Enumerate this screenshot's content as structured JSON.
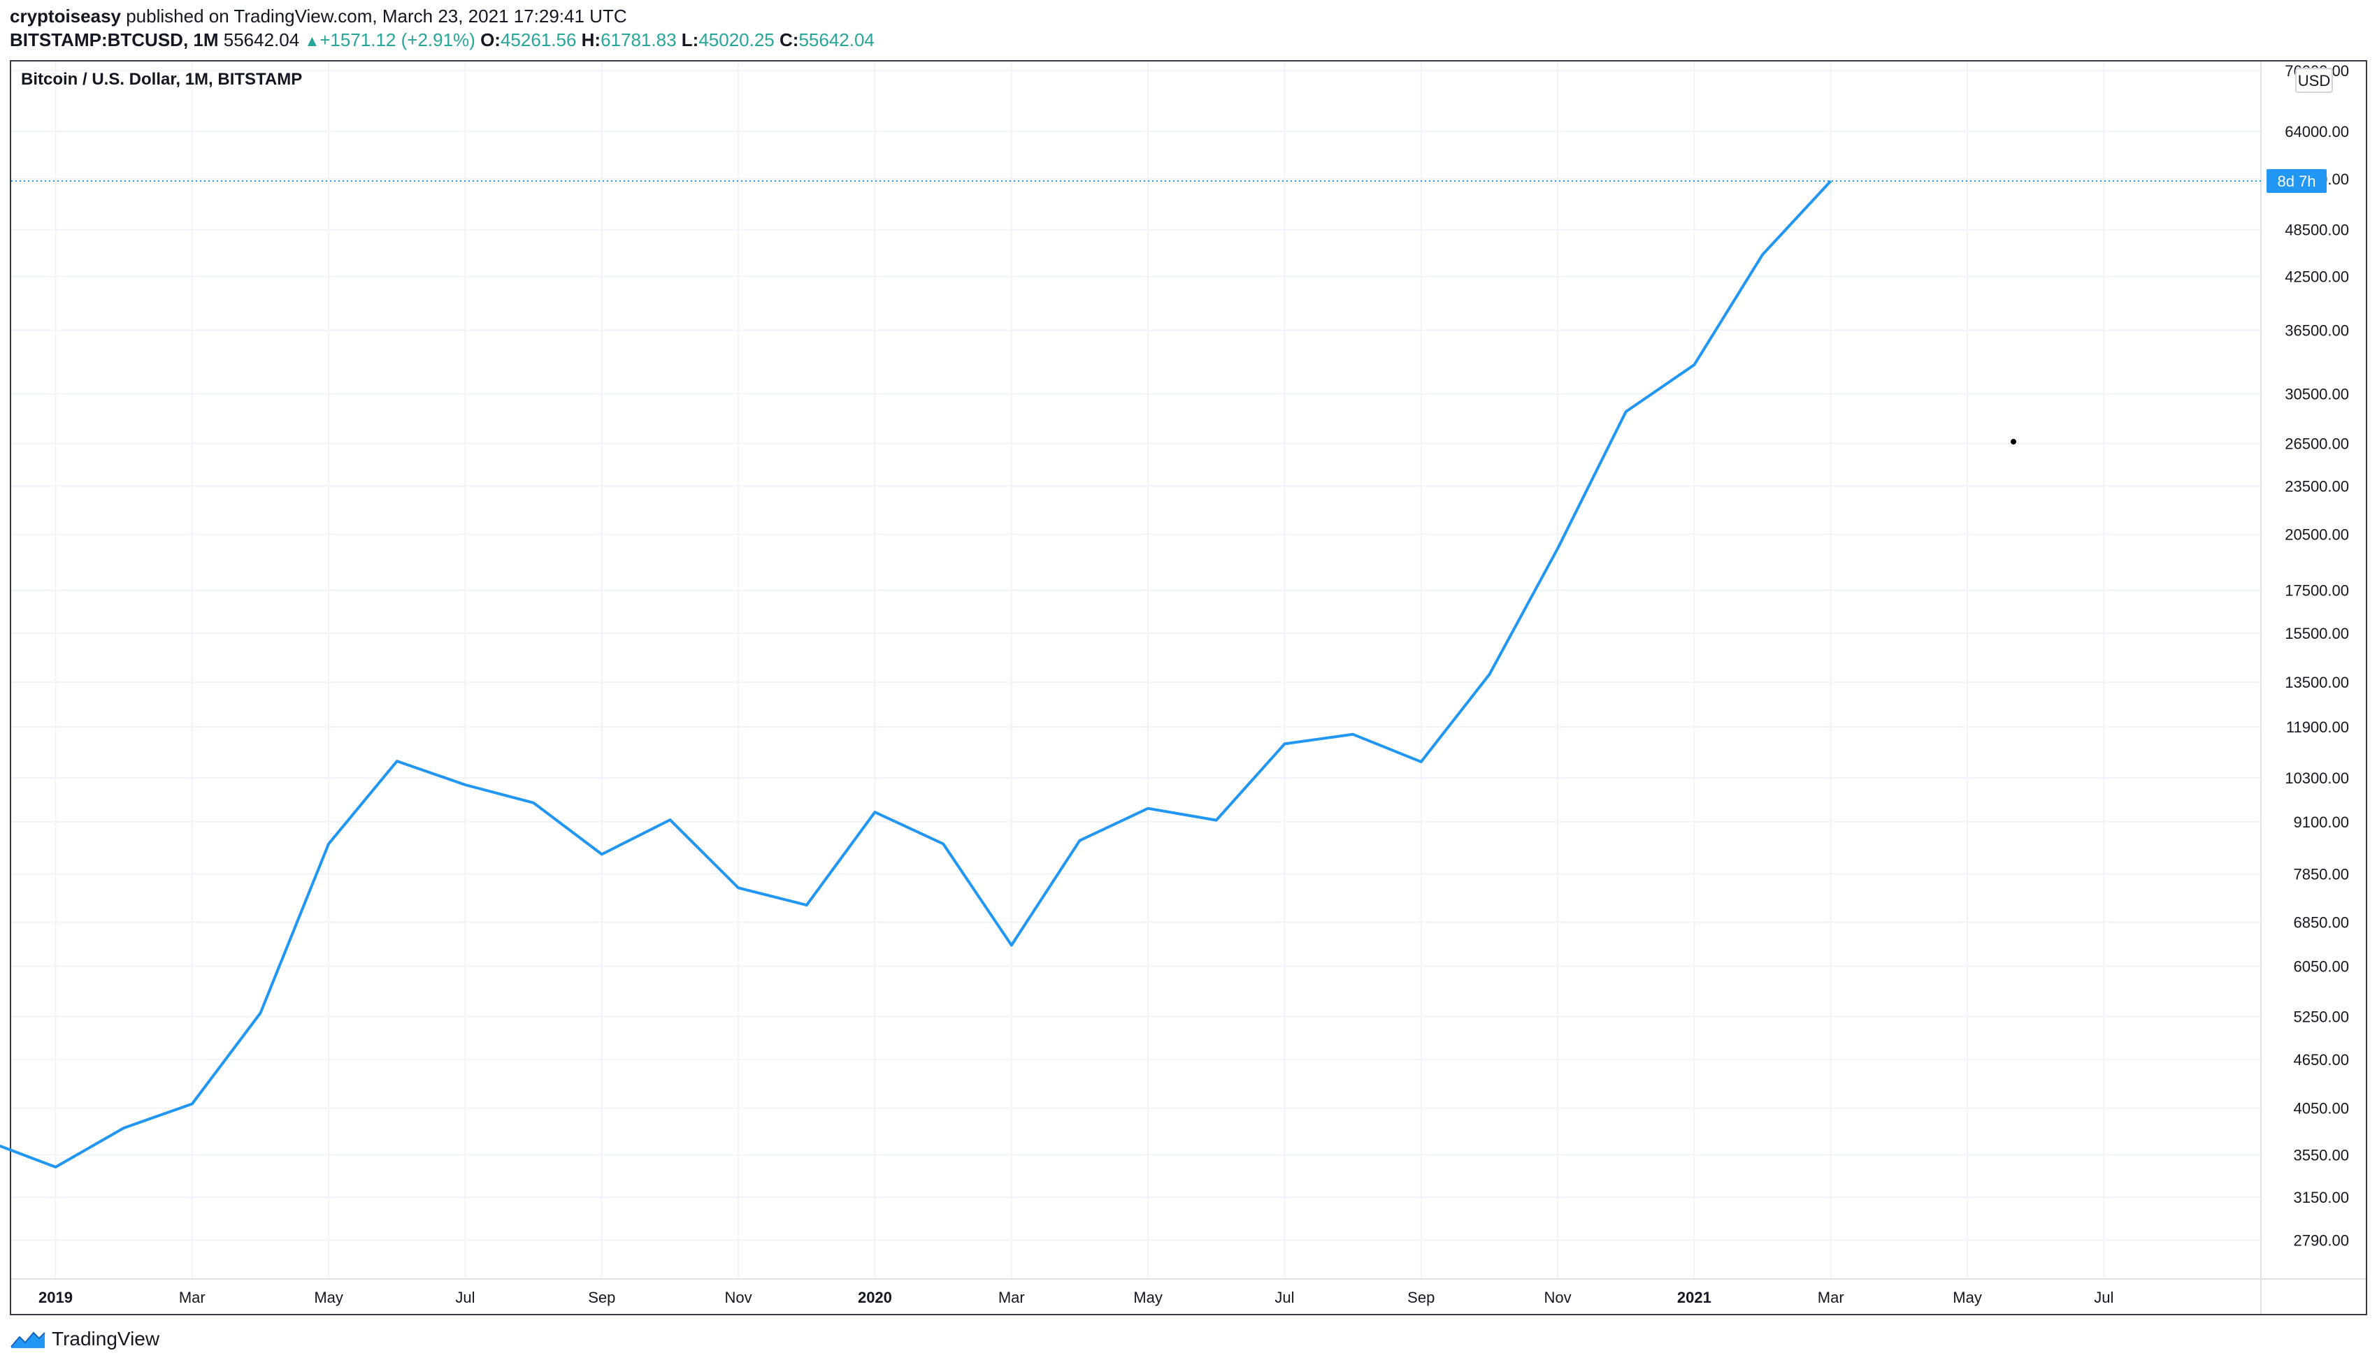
{
  "header": {
    "author": "cryptoiseasy",
    "publish_text": "published on TradingView.com, March 23, 2021 17:29:41 UTC",
    "symbol": "BITSTAMP:BTCUSD, 1M",
    "price": "55642.04",
    "change_arrow": "▲",
    "change": "+1571.12 (+2.91%)",
    "o_label": "O:",
    "o_value": "45261.56",
    "h_label": "H:",
    "h_value": "61781.83",
    "l_label": "L:",
    "l_value": "45020.25",
    "c_label": "C:",
    "c_value": "55642.04"
  },
  "footer": {
    "brand": "TradingView"
  },
  "colors": {
    "line": "#2196f3",
    "grid": "#f0f3fa",
    "badge": "#2196f3",
    "up": "#26a69a"
  },
  "chart_data": {
    "type": "line",
    "title": "Bitcoin / U.S. Dollar, 1M, BITSTAMP",
    "currency": "USD",
    "y_scale": "log",
    "ylim": [
      2500,
      78000
    ],
    "y_ticks": [
      "76000.00",
      "64000.00",
      "56000.00",
      "48500.00",
      "42500.00",
      "36500.00",
      "30500.00",
      "26500.00",
      "23500.00",
      "20500.00",
      "17500.00",
      "15500.00",
      "13500.00",
      "11900.00",
      "10300.00",
      "9100.00",
      "7850.00",
      "6850.00",
      "6050.00",
      "5250.00",
      "4650.00",
      "4050.00",
      "3550.00",
      "3150.00",
      "2790.00"
    ],
    "x_ticks": [
      {
        "label": "2019",
        "date": "2019-01",
        "year": true
      },
      {
        "label": "Mar",
        "date": "2019-03"
      },
      {
        "label": "May",
        "date": "2019-05"
      },
      {
        "label": "Jul",
        "date": "2019-07"
      },
      {
        "label": "Sep",
        "date": "2019-09"
      },
      {
        "label": "Nov",
        "date": "2019-11"
      },
      {
        "label": "2020",
        "date": "2020-01",
        "year": true
      },
      {
        "label": "Mar",
        "date": "2020-03"
      },
      {
        "label": "May",
        "date": "2020-05"
      },
      {
        "label": "Jul",
        "date": "2020-07"
      },
      {
        "label": "Sep",
        "date": "2020-09"
      },
      {
        "label": "Nov",
        "date": "2020-11"
      },
      {
        "label": "2021",
        "date": "2021-01",
        "year": true
      },
      {
        "label": "Mar",
        "date": "2021-03"
      },
      {
        "label": "May",
        "date": "2021-05"
      },
      {
        "label": "Jul",
        "date": "2021-07"
      }
    ],
    "x_range": [
      "2018-12",
      "2021-09"
    ],
    "series": [
      {
        "points": [
          {
            "x": "2018-12",
            "y": 3690
          },
          {
            "x": "2019-01",
            "y": 3430
          },
          {
            "x": "2019-02",
            "y": 3830
          },
          {
            "x": "2019-03",
            "y": 4100
          },
          {
            "x": "2019-04",
            "y": 5300
          },
          {
            "x": "2019-05",
            "y": 8550
          },
          {
            "x": "2019-06",
            "y": 10800
          },
          {
            "x": "2019-07",
            "y": 10100
          },
          {
            "x": "2019-08",
            "y": 9600
          },
          {
            "x": "2019-09",
            "y": 8300
          },
          {
            "x": "2019-10",
            "y": 9150
          },
          {
            "x": "2019-11",
            "y": 7550
          },
          {
            "x": "2019-12",
            "y": 7190
          },
          {
            "x": "2020-01",
            "y": 9350
          },
          {
            "x": "2020-02",
            "y": 8550
          },
          {
            "x": "2020-03",
            "y": 6420
          },
          {
            "x": "2020-04",
            "y": 8630
          },
          {
            "x": "2020-05",
            "y": 9450
          },
          {
            "x": "2020-06",
            "y": 9140
          },
          {
            "x": "2020-07",
            "y": 11340
          },
          {
            "x": "2020-08",
            "y": 11650
          },
          {
            "x": "2020-09",
            "y": 10780
          },
          {
            "x": "2020-10",
            "y": 13800
          },
          {
            "x": "2020-11",
            "y": 19700
          },
          {
            "x": "2020-12",
            "y": 29000
          },
          {
            "x": "2021-01",
            "y": 33100
          },
          {
            "x": "2021-02",
            "y": 45200
          },
          {
            "x": "2021-03",
            "y": 55642.04
          }
        ]
      }
    ],
    "last_price_badge": "8d 7h",
    "grid": true
  }
}
